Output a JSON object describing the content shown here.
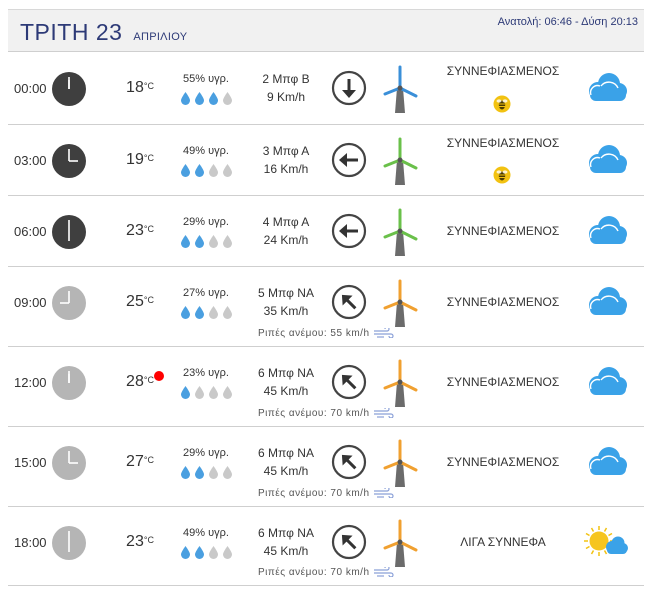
{
  "header": {
    "day": "ΤΡΙΤΗ 23",
    "month": "ΑΠΡΙΛΙΟΥ",
    "sun": "Ανατολή: 06:46  - Δύση 20:13"
  },
  "colors": {
    "title": "#2d3a77",
    "drop_full": "#4a9fe0",
    "drop_empty": "#c9c9c9",
    "cloud": "#3aa2e8",
    "turbine_blue": "#3a8fd8",
    "turbine_green": "#6ac04a",
    "turbine_orange": "#f0a030"
  },
  "rows": [
    {
      "time": "00:00",
      "temp": "18",
      "unit": "°C",
      "humidity": "55% υγρ.",
      "drops_full": 3,
      "wind_beaufort": "2 Μπφ Β",
      "wind_speed": "9 Km/h",
      "arrow": "down-arrow-icon",
      "turbine": "blue",
      "gust": "",
      "condition": "ΣΥΝΝΕΦΙΑΣΜΕΝΟΣ",
      "bee": true,
      "night": true,
      "icon": "cloud-icon"
    },
    {
      "time": "03:00",
      "temp": "19",
      "unit": "°C",
      "humidity": "49% υγρ.",
      "drops_full": 2,
      "wind_beaufort": "3 Μπφ Α",
      "wind_speed": "16 Km/h",
      "arrow": "left-arrow-icon",
      "turbine": "green",
      "gust": "",
      "condition": "ΣΥΝΝΕΦΙΑΣΜΕΝΟΣ",
      "bee": true,
      "night": true,
      "icon": "cloud-icon"
    },
    {
      "time": "06:00",
      "temp": "23",
      "unit": "°C",
      "humidity": "29% υγρ.",
      "drops_full": 2,
      "wind_beaufort": "4 Μπφ Α",
      "wind_speed": "24 Km/h",
      "arrow": "left-arrow-icon",
      "turbine": "green",
      "gust": "",
      "condition": "ΣΥΝΝΕΦΙΑΣΜΕΝΟΣ",
      "bee": false,
      "night": true,
      "icon": "cloud-icon"
    },
    {
      "time": "09:00",
      "temp": "25",
      "unit": "°C",
      "humidity": "27% υγρ.",
      "drops_full": 2,
      "wind_beaufort": "5 Μπφ ΝΑ",
      "wind_speed": "35 Km/h",
      "arrow": "up-left-arrow-icon",
      "turbine": "orange",
      "gust": "Ριπές ανέμου: 55 km/h",
      "condition": "ΣΥΝΝΕΦΙΑΣΜΕΝΟΣ",
      "bee": false,
      "night": false,
      "icon": "cloud-icon"
    },
    {
      "time": "12:00",
      "temp": "28",
      "unit": "°C",
      "humidity": "23% υγρ.",
      "drops_full": 1,
      "wind_beaufort": "6 Μπφ ΝΑ",
      "wind_speed": "45 Km/h",
      "arrow": "up-left-arrow-icon",
      "turbine": "orange",
      "gust": "Ριπές ανέμου: 70 km/h",
      "condition": "ΣΥΝΝΕΦΙΑΣΜΕΝΟΣ",
      "bee": false,
      "night": false,
      "hot": true,
      "icon": "cloud-icon"
    },
    {
      "time": "15:00",
      "temp": "27",
      "unit": "°C",
      "humidity": "29% υγρ.",
      "drops_full": 2,
      "wind_beaufort": "6 Μπφ ΝΑ",
      "wind_speed": "45 Km/h",
      "arrow": "up-left-arrow-icon",
      "turbine": "orange",
      "gust": "Ριπές ανέμου: 70 km/h",
      "condition": "ΣΥΝΝΕΦΙΑΣΜΕΝΟΣ",
      "bee": false,
      "night": false,
      "icon": "cloud-icon"
    },
    {
      "time": "18:00",
      "temp": "23",
      "unit": "°C",
      "humidity": "49% υγρ.",
      "drops_full": 2,
      "wind_beaufort": "6 Μπφ ΝΑ",
      "wind_speed": "45 Km/h",
      "arrow": "up-left-arrow-icon",
      "turbine": "orange",
      "gust": "Ριπές ανέμου: 70 km/h",
      "condition": "ΛΙΓΑ ΣΥΝΝΕΦΑ",
      "bee": false,
      "night": false,
      "icon": "sun-cloud-icon"
    }
  ]
}
